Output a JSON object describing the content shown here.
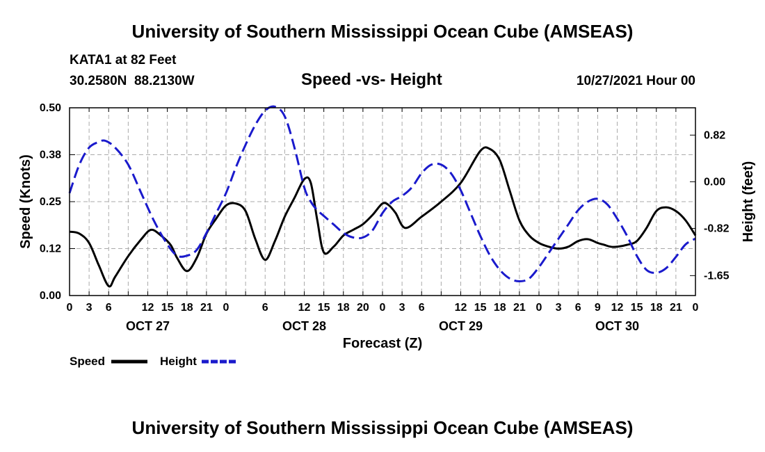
{
  "page": {
    "title_top": "University of Southern Mississippi Ocean Cube (AMSEAS)",
    "title_bottom": "University of Southern Mississippi Ocean Cube (AMSEAS)",
    "station_line1": "KATA1 at 82 Feet",
    "station_line2": "30.2580N  88.2130W",
    "subtitle": "Speed -vs- Height",
    "date": "10/27/2021 Hour 00"
  },
  "colors": {
    "speed": "#000000",
    "height": "#1a1acc",
    "grid": "#aaaaaa"
  },
  "chart_data": {
    "type": "line",
    "title": "Speed -vs- Height",
    "xlabel": "Forecast (Z)",
    "ylabel_left": "Speed (Knots)",
    "ylabel_right": "Height (feet)",
    "x_range_hours": [
      0,
      96
    ],
    "x_ticks_hours": [
      0,
      3,
      6,
      9,
      12,
      15,
      18,
      21,
      24,
      27,
      30,
      33,
      36,
      39,
      42,
      45,
      48,
      51,
      54,
      57,
      60,
      63,
      66,
      69,
      72,
      75,
      78,
      81,
      84,
      87,
      90,
      93,
      96
    ],
    "x_tick_labels": [
      "0",
      "3",
      "6",
      "12",
      "15",
      "18",
      "21",
      "0",
      "6",
      "12",
      "15",
      "18",
      "20",
      "0",
      "3",
      "6",
      "12",
      "15",
      "18",
      "21",
      "0",
      "3",
      "6",
      "9",
      "12",
      "15",
      "18",
      "21",
      "0"
    ],
    "x_tick_label_hours": [
      0,
      3,
      6,
      12,
      15,
      18,
      21,
      24,
      30,
      36,
      39,
      42,
      45,
      48,
      51,
      54,
      60,
      63,
      66,
      69,
      72,
      75,
      78,
      81,
      84,
      87,
      90,
      93,
      96
    ],
    "day_labels": [
      {
        "label": "OCT 27",
        "hour": 12
      },
      {
        "label": "OCT 28",
        "hour": 36
      },
      {
        "label": "OCT 29",
        "hour": 60
      },
      {
        "label": "OCT 30",
        "hour": 84
      }
    ],
    "y_left": {
      "range": [
        0,
        0.5
      ],
      "ticks": [
        0,
        0.125,
        0.25,
        0.375,
        0.5
      ],
      "tick_labels": [
        "0.00",
        "0.12",
        "0.25",
        "0.38",
        "0.50"
      ]
    },
    "y_right": {
      "range": [
        -2.0,
        1.3
      ],
      "ticks": [
        -1.65,
        -0.82,
        0.0,
        0.82
      ],
      "tick_labels": [
        "-1.65",
        "-0.82",
        "0.00",
        "0.82"
      ]
    },
    "grid": true,
    "legend": [
      {
        "name": "Speed",
        "style": "solid"
      },
      {
        "name": "Height",
        "style": "dashed"
      }
    ],
    "series": [
      {
        "name": "Speed",
        "axis": "left",
        "style": "solid",
        "x": [
          0,
          1.5,
          3,
          4.5,
          6,
          7,
          9,
          11,
          12.5,
          14,
          15.5,
          16.5,
          18,
          19.5,
          21,
          22.5,
          24,
          25.5,
          27,
          28.5,
          30,
          31.5,
          33,
          34.5,
          36,
          37,
          38,
          39,
          40.5,
          42,
          43.5,
          45,
          46.5,
          48,
          49,
          50,
          51.5,
          54,
          57,
          60,
          63,
          64.5,
          66,
          67.5,
          69,
          70.5,
          72,
          73.5,
          75,
          76.5,
          78,
          79.5,
          81,
          82,
          83,
          84,
          85.5,
          87,
          88.5,
          90,
          91.5,
          93,
          94.5,
          96
        ],
        "values": [
          0.17,
          0.165,
          0.14,
          0.08,
          0.025,
          0.05,
          0.105,
          0.15,
          0.175,
          0.16,
          0.135,
          0.1,
          0.065,
          0.1,
          0.165,
          0.205,
          0.24,
          0.245,
          0.225,
          0.15,
          0.095,
          0.145,
          0.21,
          0.26,
          0.31,
          0.3,
          0.2,
          0.115,
          0.13,
          0.16,
          0.175,
          0.19,
          0.215,
          0.245,
          0.24,
          0.22,
          0.18,
          0.21,
          0.25,
          0.3,
          0.385,
          0.39,
          0.36,
          0.28,
          0.2,
          0.16,
          0.14,
          0.13,
          0.125,
          0.13,
          0.145,
          0.15,
          0.14,
          0.135,
          0.13,
          0.13,
          0.135,
          0.145,
          0.18,
          0.225,
          0.235,
          0.225,
          0.2,
          0.16
        ]
      },
      {
        "name": "Height",
        "axis": "right",
        "style": "dashed",
        "x": [
          0,
          1.5,
          3,
          4.5,
          5.5,
          7,
          9,
          11,
          13,
          15,
          16.5,
          18,
          19.5,
          21,
          22.5,
          24,
          25.5,
          27,
          28.5,
          30,
          31.5,
          33,
          34.5,
          36,
          37,
          38,
          39,
          40.5,
          42,
          43.5,
          45,
          46.5,
          48,
          49.5,
          51,
          52.5,
          54,
          55.5,
          57,
          58.5,
          60,
          61.5,
          63,
          64.5,
          66,
          67.5,
          69,
          70.5,
          72,
          73.5,
          75,
          76.5,
          78,
          79.5,
          81,
          82.5,
          84,
          85.5,
          87,
          88.5,
          90,
          91.5,
          93,
          94.5,
          96
        ],
        "values": [
          -0.2,
          0.3,
          0.6,
          0.7,
          0.72,
          0.6,
          0.3,
          -0.2,
          -0.7,
          -1.1,
          -1.3,
          -1.3,
          -1.2,
          -0.9,
          -0.55,
          -0.2,
          0.25,
          0.65,
          1.0,
          1.25,
          1.32,
          1.15,
          0.6,
          -0.1,
          -0.35,
          -0.5,
          -0.6,
          -0.75,
          -0.9,
          -0.98,
          -0.98,
          -0.85,
          -0.55,
          -0.35,
          -0.25,
          -0.1,
          0.15,
          0.3,
          0.3,
          0.15,
          -0.15,
          -0.55,
          -0.95,
          -1.3,
          -1.55,
          -1.7,
          -1.75,
          -1.7,
          -1.5,
          -1.25,
          -1.0,
          -0.75,
          -0.5,
          -0.35,
          -0.3,
          -0.4,
          -0.65,
          -0.95,
          -1.3,
          -1.55,
          -1.6,
          -1.52,
          -1.32,
          -1.1,
          -1.0
        ]
      }
    ]
  }
}
